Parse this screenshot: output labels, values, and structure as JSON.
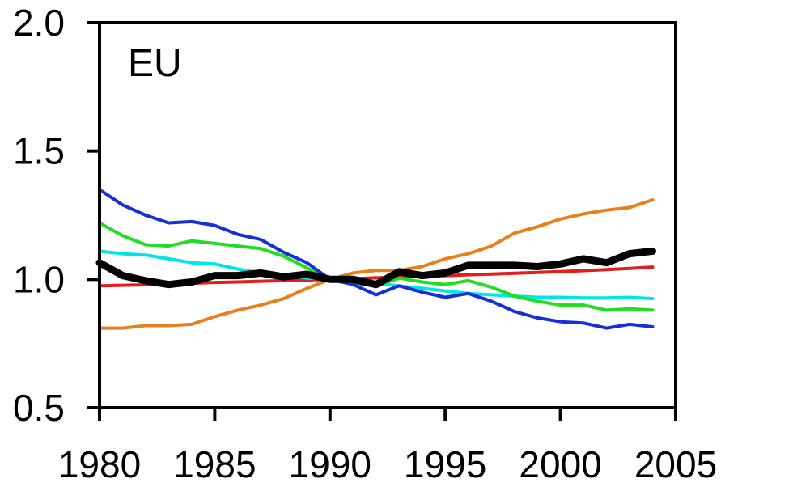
{
  "chart_data": {
    "type": "line",
    "title": "",
    "xlabel": "",
    "ylabel": "",
    "annotation": "EU",
    "xlim": [
      1980,
      2005
    ],
    "ylim": [
      0.5,
      2.0
    ],
    "xticks": [
      {
        "value": 1980,
        "label": "1980"
      },
      {
        "value": 1985,
        "label": "1985"
      },
      {
        "value": 1990,
        "label": "1990"
      },
      {
        "value": 1995,
        "label": "1995"
      },
      {
        "value": 2000,
        "label": "2000"
      },
      {
        "value": 2005,
        "label": "2005"
      }
    ],
    "yticks": [
      {
        "value": 0.5,
        "label": "0.5"
      },
      {
        "value": 1.0,
        "label": "1.0"
      },
      {
        "value": 1.5,
        "label": "1.5"
      },
      {
        "value": 2.0,
        "label": "2.0"
      }
    ],
    "grid": false,
    "legend": "none",
    "x": [
      1980,
      1981,
      1982,
      1983,
      1984,
      1985,
      1986,
      1987,
      1988,
      1989,
      1990,
      1991,
      1992,
      1993,
      1994,
      1995,
      1996,
      1997,
      1998,
      1999,
      2000,
      2001,
      2002,
      2003,
      2004
    ],
    "series": [
      {
        "color": "#e8801a",
        "width": 4,
        "values": [
          0.81,
          0.81,
          0.82,
          0.82,
          0.825,
          0.855,
          0.88,
          0.9,
          0.925,
          0.965,
          1.0,
          1.025,
          1.035,
          1.035,
          1.05,
          1.08,
          1.1,
          1.13,
          1.18,
          1.205,
          1.235,
          1.255,
          1.27,
          1.28,
          1.31
        ]
      },
      {
        "color": "#e01e1e",
        "width": 4,
        "values": [
          0.975,
          0.977,
          0.979,
          0.982,
          0.985,
          0.988,
          0.99,
          0.993,
          0.995,
          0.998,
          1.0,
          1.003,
          1.006,
          1.009,
          1.012,
          1.015,
          1.018,
          1.021,
          1.024,
          1.027,
          1.03,
          1.034,
          1.038,
          1.043,
          1.048
        ]
      },
      {
        "color": "#00e5e5",
        "width": 4,
        "values": [
          1.11,
          1.1,
          1.095,
          1.08,
          1.065,
          1.06,
          1.04,
          1.025,
          1.015,
          1.005,
          1.0,
          0.99,
          0.985,
          0.975,
          0.965,
          0.955,
          0.945,
          0.94,
          0.935,
          0.93,
          0.93,
          0.928,
          0.928,
          0.93,
          0.925
        ]
      },
      {
        "color": "#22dd22",
        "width": 4,
        "values": [
          1.22,
          1.17,
          1.135,
          1.13,
          1.15,
          1.14,
          1.13,
          1.12,
          1.09,
          1.045,
          1.0,
          0.985,
          0.975,
          1.005,
          0.99,
          0.98,
          0.995,
          0.97,
          0.935,
          0.915,
          0.9,
          0.9,
          0.88,
          0.885,
          0.88
        ]
      },
      {
        "color": "#1530d8",
        "width": 4,
        "values": [
          1.35,
          1.29,
          1.25,
          1.22,
          1.225,
          1.21,
          1.175,
          1.155,
          1.105,
          1.065,
          1.0,
          0.98,
          0.94,
          0.975,
          0.95,
          0.93,
          0.945,
          0.915,
          0.875,
          0.85,
          0.835,
          0.83,
          0.81,
          0.825,
          0.815
        ]
      },
      {
        "color": "#000000",
        "width": 9,
        "values": [
          1.065,
          1.015,
          0.995,
          0.98,
          0.99,
          1.015,
          1.015,
          1.025,
          1.01,
          1.02,
          1.0,
          1.0,
          0.98,
          1.03,
          1.015,
          1.025,
          1.055,
          1.055,
          1.055,
          1.05,
          1.06,
          1.08,
          1.065,
          1.1,
          1.11
        ]
      }
    ]
  }
}
